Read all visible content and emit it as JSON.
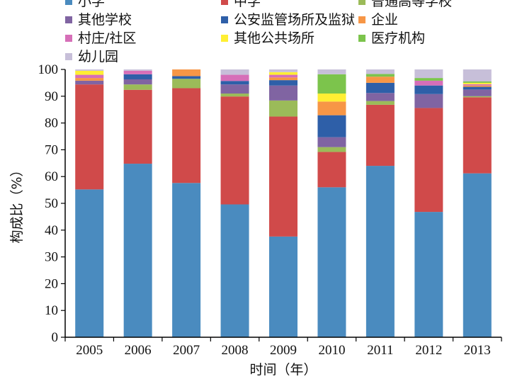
{
  "chart_data": {
    "type": "bar",
    "stacked": true,
    "title": "",
    "xlabel": "时间（年）",
    "ylabel": "构成比（%）",
    "ylim": [
      0,
      100
    ],
    "yticks": [
      0,
      10,
      20,
      30,
      40,
      50,
      60,
      70,
      80,
      90,
      100
    ],
    "legend_position": "top",
    "grid": false,
    "categories": [
      "2005",
      "2006",
      "2007",
      "2008",
      "2009",
      "2010",
      "2011",
      "2012",
      "2013"
    ],
    "series": [
      {
        "name": "小学",
        "color": "#4a8bbf",
        "values": [
          55.2,
          64.8,
          57.6,
          49.6,
          37.6,
          56.0,
          64.0,
          46.8,
          61.2
        ]
      },
      {
        "name": "中学",
        "color": "#d04a4a",
        "values": [
          39.2,
          27.6,
          35.4,
          40.3,
          44.8,
          13.2,
          22.8,
          38.8,
          28.4
        ]
      },
      {
        "name": "普通高等学校",
        "color": "#9bbb59",
        "values": [
          0.0,
          2.0,
          3.5,
          1.1,
          6.0,
          1.8,
          1.4,
          0.0,
          0.4
        ]
      },
      {
        "name": "其他学校",
        "color": "#8064a2",
        "values": [
          1.4,
          1.9,
          0.0,
          3.4,
          5.6,
          3.7,
          3.0,
          5.2,
          2.5
        ]
      },
      {
        "name": "公安监管场所及监狱",
        "color": "#2e5fa8",
        "values": [
          0.0,
          1.9,
          1.0,
          1.3,
          2.0,
          8.2,
          3.8,
          3.2,
          1.0
        ]
      },
      {
        "name": "企业",
        "color": "#f79646",
        "values": [
          1.0,
          0.0,
          2.5,
          0.0,
          1.0,
          5.1,
          2.3,
          0.0,
          0.5
        ]
      },
      {
        "name": "村庄/社区",
        "color": "#d66fb8",
        "values": [
          1.2,
          1.3,
          0.0,
          2.3,
          1.0,
          0.0,
          0.0,
          1.8,
          0.5
        ]
      },
      {
        "name": "其他公共场所",
        "color": "#ffef33",
        "values": [
          1.5,
          0.0,
          0.0,
          0.0,
          1.0,
          3.0,
          0.0,
          0.0,
          0.5
        ]
      },
      {
        "name": "医疗机构",
        "color": "#7cc44c",
        "values": [
          0.0,
          0.0,
          0.0,
          0.0,
          0.0,
          7.2,
          1.0,
          1.0,
          0.5
        ]
      },
      {
        "name": "幼儿园",
        "color": "#c7bfd9",
        "values": [
          0.5,
          0.5,
          0.0,
          2.0,
          1.0,
          1.8,
          1.7,
          3.2,
          4.5
        ]
      }
    ]
  }
}
